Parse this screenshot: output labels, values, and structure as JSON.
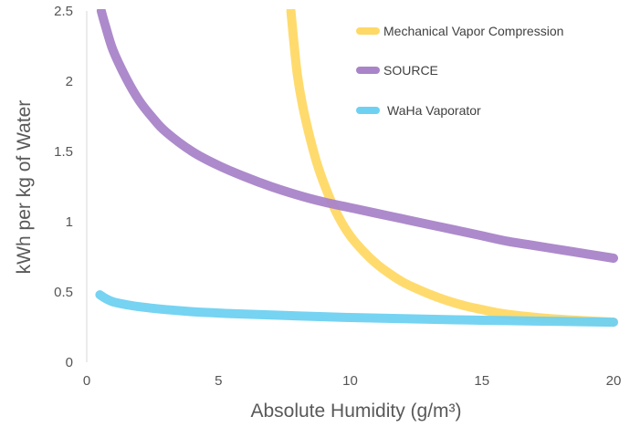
{
  "chart_data": {
    "type": "line",
    "title": "",
    "xlabel": "Absolute Humidity (g/m³)",
    "ylabel": "kWh per kg of Water",
    "xlim": [
      0,
      20
    ],
    "ylim": [
      0,
      2.5
    ],
    "x_ticks": [
      "0",
      "5",
      "10",
      "15",
      "20"
    ],
    "y_ticks": [
      "0",
      "0.5",
      "1",
      "1.5",
      "2",
      "2.5"
    ],
    "grid": false,
    "legend_position": "top-right",
    "series": [
      {
        "name": "Mechanical Vapor Compression",
        "color": "#FFD966",
        "x": [
          7.75,
          7.85,
          8.0,
          8.2,
          8.5,
          8.8,
          9.2,
          9.6,
          10.0,
          10.5,
          11.0,
          11.5,
          12.0,
          12.5,
          13.0,
          13.5,
          14.0,
          14.5,
          15.0,
          15.5,
          16.0,
          17.0,
          18.0,
          19.0,
          20.0
        ],
        "y": [
          2.5,
          2.3,
          2.04,
          1.82,
          1.58,
          1.38,
          1.18,
          1.02,
          0.9,
          0.79,
          0.7,
          0.63,
          0.57,
          0.525,
          0.485,
          0.45,
          0.42,
          0.395,
          0.375,
          0.355,
          0.34,
          0.32,
          0.305,
          0.295,
          0.285
        ]
      },
      {
        "name": "SOURCE",
        "color": "#A984C8",
        "x": [
          0.55,
          0.7,
          1.0,
          1.5,
          2.0,
          2.5,
          3.0,
          4.0,
          5.0,
          6.0,
          7.0,
          8.0,
          9.0,
          10.0,
          11.0,
          12.0,
          13.0,
          14.0,
          15.0,
          16.0,
          17.0,
          18.0,
          19.0,
          20.0
        ],
        "y": [
          2.5,
          2.4,
          2.22,
          2.02,
          1.86,
          1.74,
          1.64,
          1.5,
          1.4,
          1.32,
          1.25,
          1.19,
          1.14,
          1.1,
          1.06,
          1.02,
          0.98,
          0.94,
          0.9,
          0.86,
          0.83,
          0.8,
          0.77,
          0.74
        ]
      },
      {
        "name": "WaHa Vaporator",
        "color": "#6FD1F1",
        "x": [
          0.5,
          0.7,
          1.0,
          1.5,
          2.0,
          3.0,
          4.0,
          5.0,
          6.0,
          8.0,
          10.0,
          12.0,
          14.0,
          16.0,
          18.0,
          20.0
        ],
        "y": [
          0.48,
          0.455,
          0.43,
          0.41,
          0.395,
          0.375,
          0.36,
          0.35,
          0.342,
          0.33,
          0.318,
          0.31,
          0.302,
          0.296,
          0.29,
          0.285
        ]
      }
    ]
  }
}
